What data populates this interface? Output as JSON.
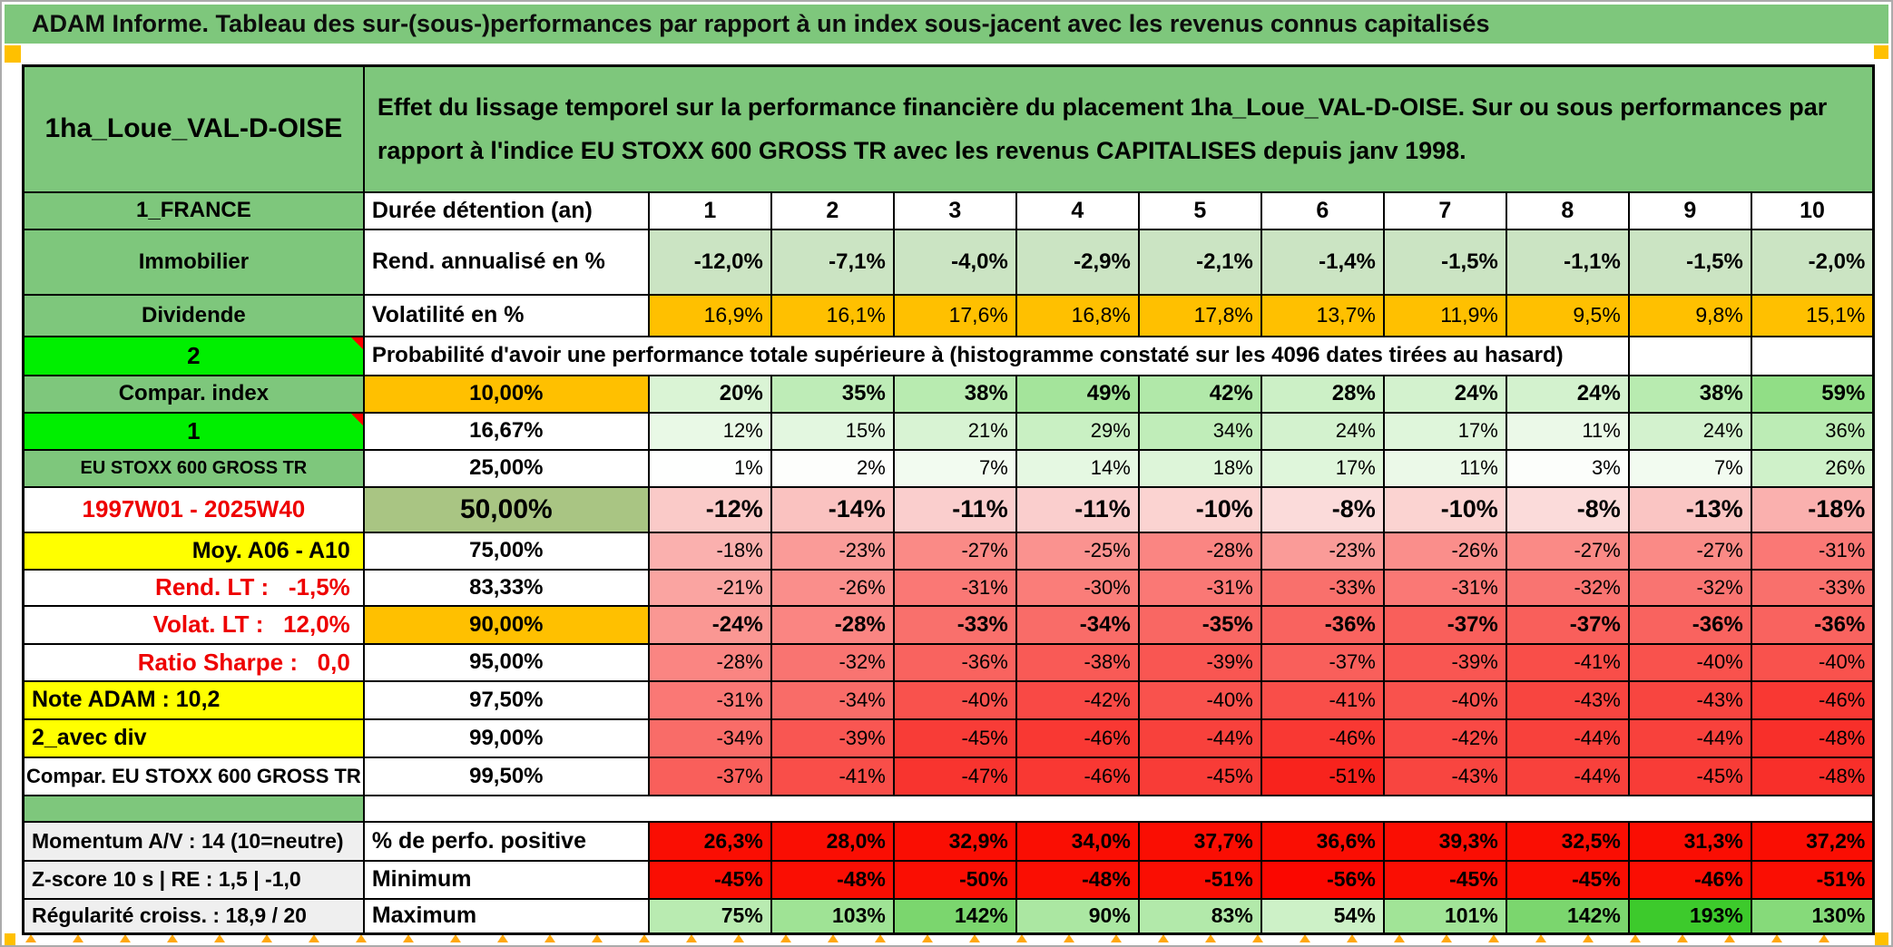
{
  "title": "ADAM Informe. Tableau des sur-(sous-)performances par rapport à un index sous-jacent avec les revenus connus capitalisés",
  "header": {
    "placement": "1ha_Loue_VAL-D-OISE",
    "description": "Effet du lissage temporel sur la performance financière du placement 1ha_Loue_VAL-D-OISE. Sur ou sous performances par rapport à l'indice EU STOXX 600 GROSS TR avec les revenus CAPITALISES depuis janv 1998."
  },
  "colors": {
    "header_green": "#7EC77C",
    "bright_green": "#00EF00",
    "orange": "#FFC000",
    "yellow": "#FFFF00",
    "olive": "#A9C583",
    "light_green_row": "#CBE4C3",
    "gray_label": "#EFEFEF",
    "pure_red": "#FA0E03",
    "red_text": "#EE0000",
    "marker_orange": "#FFA812"
  },
  "table": {
    "rows": [
      {
        "kind": "data",
        "left": {
          "text": "1_FRANCE",
          "style": "green"
        },
        "mid": {
          "text": "Durée détention (an)",
          "style": "label"
        },
        "vstyle": "duree",
        "values": [
          "1",
          "2",
          "3",
          "4",
          "5",
          "6",
          "7",
          "8",
          "9",
          "10"
        ]
      },
      {
        "kind": "data",
        "left": {
          "text": "Immobilier",
          "style": "green"
        },
        "mid": {
          "text": "Rend. annualisé en %",
          "style": "label"
        },
        "vstyle": "rend",
        "bg": "#CBE4C3",
        "values": [
          "-12,0%",
          "-7,1%",
          "-4,0%",
          "-2,9%",
          "-2,1%",
          "-1,4%",
          "-1,5%",
          "-1,1%",
          "-1,5%",
          "-2,0%"
        ]
      },
      {
        "kind": "data",
        "left": {
          "text": "Dividende",
          "style": "green"
        },
        "mid": {
          "text": "Volatilité en %",
          "style": "label"
        },
        "vstyle": "volat",
        "bg": "#FFC000",
        "values": [
          "16,9%",
          "16,1%",
          "17,6%",
          "16,8%",
          "17,8%",
          "13,7%",
          "11,9%",
          "9,5%",
          "9,8%",
          "15,1%"
        ]
      },
      {
        "kind": "span",
        "left": {
          "text": "2",
          "style": "bright",
          "notch": true
        },
        "span_text": "Probabilité d'avoir une performance totale supérieure à (histogramme constaté sur les 4096 dates tirées au hasard)",
        "tail": 2
      },
      {
        "kind": "data",
        "left": {
          "text": "Compar. index",
          "style": "green"
        },
        "mid": {
          "text": "10,00%",
          "style": "pct-orange"
        },
        "vstyle": "prob-bold",
        "values": [
          "20%",
          "35%",
          "38%",
          "49%",
          "42%",
          "28%",
          "24%",
          "24%",
          "38%",
          "59%"
        ],
        "colors": [
          "#DAF4D5",
          "#BEECB7",
          "#B8EBB0",
          "#A4E49B",
          "#B1E8A9",
          "#CCF0C6",
          "#D3F2CE",
          "#D3F2CE",
          "#B8EBB0",
          "#91DE86"
        ]
      },
      {
        "kind": "data",
        "left": {
          "text": "1",
          "style": "bright",
          "notch": true
        },
        "mid": {
          "text": "16,67%",
          "style": "pct"
        },
        "vstyle": "prob",
        "values": [
          "12%",
          "15%",
          "21%",
          "29%",
          "34%",
          "24%",
          "17%",
          "11%",
          "24%",
          "36%"
        ],
        "colors": [
          "#E9F9E6",
          "#E3F7E0",
          "#D8F3D3",
          "#C9F0C3",
          "#C0EDB9",
          "#D3F2CE",
          "#DFF6DB",
          "#EBF9E8",
          "#D3F2CE",
          "#BCECB5"
        ]
      },
      {
        "kind": "data",
        "left": {
          "text": "EU STOXX 600 GROSS TR",
          "style": "green-sm"
        },
        "mid": {
          "text": "25,00%",
          "style": "pct"
        },
        "vstyle": "prob",
        "values": [
          "1%",
          "2%",
          "7%",
          "14%",
          "18%",
          "17%",
          "11%",
          "3%",
          "7%",
          "26%"
        ],
        "colors": [
          "#FEFFFE",
          "#FDFEFC",
          "#F2FBF0",
          "#E5F8E2",
          "#DDF5D9",
          "#DFF6DB",
          "#EBF9E8",
          "#FCFEFB",
          "#F2FBF0",
          "#CFF1C9"
        ]
      },
      {
        "kind": "data",
        "left": {
          "text": "1997W01 - 2025W40",
          "style": "red-center"
        },
        "mid": {
          "text": "50,00%",
          "style": "pct-big"
        },
        "vstyle": "prob-big",
        "values": [
          "-12%",
          "-14%",
          "-11%",
          "-11%",
          "-10%",
          "-8%",
          "-10%",
          "-8%",
          "-13%",
          "-18%"
        ],
        "colors": [
          "#FACAC8",
          "#FAC2C0",
          "#FACECD",
          "#FACECD",
          "#FBD3D1",
          "#FBDBDA",
          "#FBD3D1",
          "#FBDBDA",
          "#FAC5C3",
          "#FAB0AE"
        ]
      },
      {
        "kind": "data",
        "left": {
          "text": "Moy. A06 - A10",
          "style": "yellow-right"
        },
        "mid": {
          "text": "75,00%",
          "style": "pct"
        },
        "vstyle": "prob",
        "values": [
          "-18%",
          "-23%",
          "-27%",
          "-25%",
          "-28%",
          "-23%",
          "-26%",
          "-27%",
          "-27%",
          "-31%"
        ],
        "colors": [
          "#FAB0AE",
          "#FA9B98",
          "#FA8A86",
          "#FA928F",
          "#FA8582",
          "#FA9B98",
          "#FA8E8B",
          "#FA8A86",
          "#FA8A86",
          "#FA7875"
        ]
      },
      {
        "kind": "data",
        "left": {
          "text": "Rend. LT :   -1,5%",
          "style": "red-right"
        },
        "mid": {
          "text": "83,33%",
          "style": "pct"
        },
        "vstyle": "prob",
        "values": [
          "-21%",
          "-26%",
          "-31%",
          "-30%",
          "-31%",
          "-33%",
          "-31%",
          "-32%",
          "-32%",
          "-33%"
        ],
        "colors": [
          "#FAA4A1",
          "#FA8E8B",
          "#FA7875",
          "#FA7D79",
          "#FA7875",
          "#F9706C",
          "#FA7875",
          "#F97471",
          "#F97471",
          "#F9706C"
        ]
      },
      {
        "kind": "data",
        "left": {
          "text": "Volat. LT :   12,0%",
          "style": "red-right"
        },
        "mid": {
          "text": "90,00%",
          "style": "pct-orange"
        },
        "vstyle": "prob-bold",
        "values": [
          "-24%",
          "-28%",
          "-33%",
          "-34%",
          "-35%",
          "-36%",
          "-37%",
          "-37%",
          "-36%",
          "-36%"
        ],
        "colors": [
          "#FA9793",
          "#FA8582",
          "#F9706C",
          "#F96C68",
          "#F96763",
          "#F9635F",
          "#F95F5B",
          "#F95F5B",
          "#F9635F",
          "#F9635F"
        ]
      },
      {
        "kind": "data",
        "left": {
          "text": "Ratio Sharpe :   0,0",
          "style": "red-right"
        },
        "mid": {
          "text": "95,00%",
          "style": "pct"
        },
        "vstyle": "prob",
        "values": [
          "-28%",
          "-32%",
          "-36%",
          "-38%",
          "-39%",
          "-37%",
          "-39%",
          "-41%",
          "-40%",
          "-40%"
        ],
        "colors": [
          "#FA8582",
          "#F97471",
          "#F9635F",
          "#F95A56",
          "#F95652",
          "#F95F5B",
          "#F95652",
          "#F94E49",
          "#F9524D",
          "#F9524D"
        ]
      },
      {
        "kind": "data",
        "left": {
          "text": "Note ADAM : 10,2",
          "style": "yellow-left"
        },
        "mid": {
          "text": "97,50%",
          "style": "pct"
        },
        "vstyle": "prob",
        "values": [
          "-31%",
          "-34%",
          "-40%",
          "-42%",
          "-40%",
          "-41%",
          "-40%",
          "-43%",
          "-43%",
          "-46%"
        ],
        "colors": [
          "#FA7875",
          "#F96C68",
          "#F9524D",
          "#F94945",
          "#F9524D",
          "#F94E49",
          "#F9524D",
          "#F84540",
          "#F84540",
          "#F93833"
        ]
      },
      {
        "kind": "data",
        "left": {
          "text": "2_avec div",
          "style": "yellow-left"
        },
        "mid": {
          "text": "99,00%",
          "style": "pct"
        },
        "vstyle": "prob",
        "values": [
          "-34%",
          "-39%",
          "-45%",
          "-46%",
          "-44%",
          "-46%",
          "-42%",
          "-44%",
          "-44%",
          "-48%"
        ],
        "colors": [
          "#F96C68",
          "#F95652",
          "#F83C37",
          "#F93833",
          "#F8413C",
          "#F93833",
          "#F94945",
          "#F8413C",
          "#F8413C",
          "#F82F2A"
        ]
      },
      {
        "kind": "data",
        "left": {
          "text": "Compar. EU STOXX 600 GROSS TR",
          "style": "white-center"
        },
        "mid": {
          "text": "99,50%",
          "style": "pct"
        },
        "vstyle": "prob",
        "values": [
          "-37%",
          "-41%",
          "-47%",
          "-46%",
          "-45%",
          "-51%",
          "-43%",
          "-44%",
          "-45%",
          "-48%"
        ],
        "colors": [
          "#F95F5B",
          "#F94E49",
          "#F8342F",
          "#F93833",
          "#F83C37",
          "#F8231D",
          "#F84540",
          "#F8413C",
          "#F83C37",
          "#F82F2A"
        ]
      },
      {
        "kind": "sep"
      },
      {
        "kind": "data",
        "left": {
          "text": "Momentum A/V : 14 (10=neutre)",
          "style": "gray"
        },
        "mid": {
          "text": "% de perfo. positive",
          "style": "label"
        },
        "vstyle": "bottom",
        "values": [
          "26,3%",
          "28,0%",
          "32,9%",
          "34,0%",
          "37,7%",
          "36,6%",
          "39,3%",
          "32,5%",
          "31,3%",
          "37,2%"
        ],
        "colors": [
          "#FA0E03",
          "#FA0E03",
          "#FA0E03",
          "#FA0E03",
          "#FA0E03",
          "#FA0E03",
          "#FA0E03",
          "#FA0E03",
          "#FA0E03",
          "#FA0E03"
        ]
      },
      {
        "kind": "data",
        "left": {
          "text": "Z-score 10 s | RE : 1,5 | -1,0",
          "style": "gray"
        },
        "mid": {
          "text": "Minimum",
          "style": "label"
        },
        "vstyle": "bottom",
        "values": [
          "-45%",
          "-48%",
          "-50%",
          "-48%",
          "-51%",
          "-56%",
          "-45%",
          "-45%",
          "-46%",
          "-51%"
        ],
        "colors": [
          "#FA0E03",
          "#FA0E03",
          "#FA0E03",
          "#FA0E03",
          "#FA0E03",
          "#FB0700",
          "#FA0E03",
          "#FA0E03",
          "#FA0E03",
          "#FA0E03"
        ]
      },
      {
        "kind": "data",
        "left": {
          "text": "Régularité croiss. : 18,9 / 20",
          "style": "gray"
        },
        "mid": {
          "text": "Maximum",
          "style": "label"
        },
        "vstyle": "bottom",
        "values": [
          "75%",
          "103%",
          "142%",
          "90%",
          "83%",
          "54%",
          "101%",
          "142%",
          "193%",
          "130%"
        ],
        "colors": [
          "#B9EBB1",
          "#9FE395",
          "#7BD66E",
          "#ABE7A2",
          "#B2E9AA",
          "#CDF1C7",
          "#A1E497",
          "#7BD66E",
          "#3DCA2C",
          "#86DA7A"
        ]
      }
    ]
  }
}
